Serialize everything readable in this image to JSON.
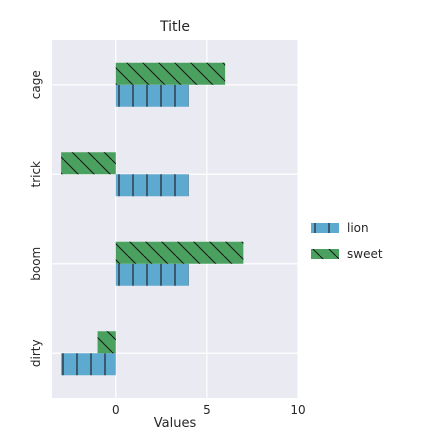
{
  "chart_data": {
    "type": "bar",
    "orientation": "horizontal",
    "title": "Title",
    "xlabel": "Values",
    "ylabel": "",
    "xlim": [
      -3.5,
      10
    ],
    "xticks": [
      "0",
      "5",
      "10"
    ],
    "grid": true,
    "legend_position": "right",
    "categories": [
      "dirty",
      "boom",
      "trick",
      "cage"
    ],
    "series": [
      {
        "name": "lion",
        "values": [
          -3,
          4,
          4,
          4
        ],
        "color": "#5ea9d0",
        "hatch": "plus"
      },
      {
        "name": "sweet",
        "values": [
          -1,
          7,
          -3,
          6
        ],
        "color": "#4aa15f",
        "hatch": "backslash"
      }
    ]
  }
}
